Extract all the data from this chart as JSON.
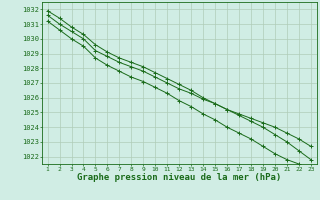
{
  "title": "Graphe pression niveau de la mer (hPa)",
  "x": [
    1,
    2,
    3,
    4,
    5,
    6,
    7,
    8,
    9,
    10,
    11,
    12,
    13,
    14,
    15,
    16,
    17,
    18,
    19,
    20,
    21,
    22,
    23
  ],
  "series1": [
    1031.6,
    1031.0,
    1030.5,
    1030.0,
    1029.2,
    1028.8,
    1028.4,
    1028.1,
    1027.8,
    1027.4,
    1027.0,
    1026.6,
    1026.3,
    1025.9,
    1025.6,
    1025.2,
    1024.9,
    1024.6,
    1024.3,
    1024.0,
    1023.6,
    1023.2,
    1022.7
  ],
  "series2": [
    1031.9,
    1031.4,
    1030.8,
    1030.3,
    1029.6,
    1029.1,
    1028.7,
    1028.4,
    1028.1,
    1027.7,
    1027.3,
    1026.9,
    1026.5,
    1026.0,
    1025.6,
    1025.2,
    1024.8,
    1024.4,
    1024.0,
    1023.5,
    1023.0,
    1022.4,
    1021.8
  ],
  "series3": [
    1031.2,
    1030.6,
    1030.0,
    1029.5,
    1028.7,
    1028.2,
    1027.8,
    1027.4,
    1027.1,
    1026.7,
    1026.3,
    1025.8,
    1025.4,
    1024.9,
    1024.5,
    1024.0,
    1023.6,
    1023.2,
    1022.7,
    1022.2,
    1021.8,
    1021.5,
    1021.2
  ],
  "line_color": "#1a6b1a",
  "bg_color": "#d0ede4",
  "grid_color": "#b0ccb8",
  "ylim_min": 1021.5,
  "ylim_max": 1032.5,
  "yticks": [
    1022,
    1023,
    1024,
    1025,
    1026,
    1027,
    1028,
    1029,
    1030,
    1031,
    1032
  ],
  "marker": "+"
}
